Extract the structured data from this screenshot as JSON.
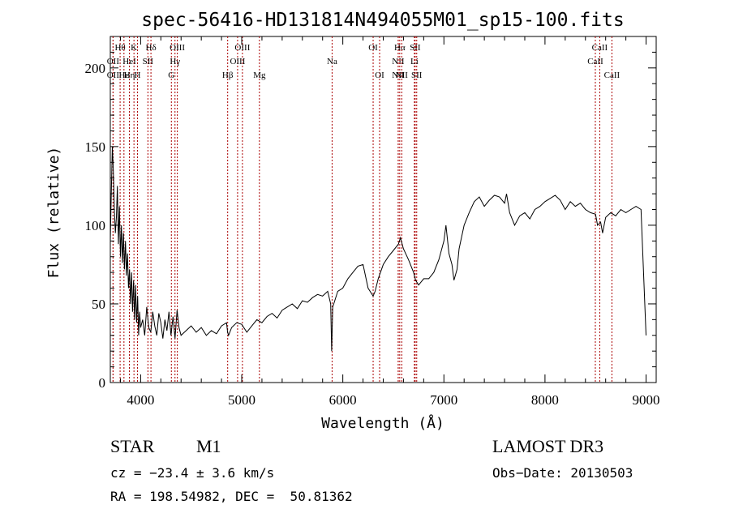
{
  "chart_data": {
    "type": "line",
    "title": "spec-56416-HD131814N494055M01_sp15-100.fits",
    "xlabel": "Wavelength (Å)",
    "ylabel": "Flux (relative)",
    "xlim": [
      3700,
      9100
    ],
    "ylim": [
      0,
      220
    ],
    "xticks": [
      4000,
      5000,
      6000,
      7000,
      8000,
      9000
    ],
    "yticks": [
      0,
      50,
      100,
      150,
      200
    ],
    "grid": false,
    "line_color": "#000000",
    "marker_color": "#aa0000",
    "series": [
      {
        "x": [
          3700,
          3710,
          3720,
          3730,
          3740,
          3750,
          3760,
          3770,
          3780,
          3790,
          3800,
          3810,
          3820,
          3830,
          3840,
          3850,
          3860,
          3870,
          3880,
          3890,
          3900,
          3910,
          3920,
          3930,
          3940,
          3950,
          3960,
          3970,
          3980,
          3990,
          4000,
          4020,
          4040,
          4060,
          4080,
          4100,
          4120,
          4140,
          4160,
          4180,
          4200,
          4220,
          4240,
          4260,
          4280,
          4300,
          4320,
          4340,
          4360,
          4380,
          4400,
          4450,
          4500,
          4550,
          4600,
          4650,
          4700,
          4750,
          4800,
          4850,
          4860,
          4870,
          4900,
          4950,
          5000,
          5050,
          5100,
          5150,
          5200,
          5250,
          5300,
          5350,
          5400,
          5450,
          5500,
          5550,
          5600,
          5650,
          5700,
          5750,
          5800,
          5850,
          5880,
          5890,
          5900,
          5920,
          5950,
          6000,
          6050,
          6100,
          6150,
          6200,
          6250,
          6300,
          6320,
          6350,
          6400,
          6450,
          6500,
          6550,
          6570,
          6600,
          6650,
          6700,
          6720,
          6750,
          6800,
          6850,
          6900,
          6950,
          7000,
          7020,
          7050,
          7080,
          7100,
          7130,
          7150,
          7200,
          7250,
          7300,
          7350,
          7400,
          7450,
          7500,
          7550,
          7600,
          7620,
          7650,
          7700,
          7750,
          7800,
          7850,
          7900,
          7950,
          8000,
          8050,
          8100,
          8150,
          8200,
          8250,
          8300,
          8350,
          8400,
          8450,
          8500,
          8520,
          8550,
          8570,
          8600,
          8650,
          8700,
          8750,
          8800,
          8850,
          8900,
          8950,
          9000
        ],
        "y": [
          90,
          120,
          150,
          135,
          110,
          95,
          105,
          125,
          88,
          112,
          80,
          100,
          76,
          95,
          72,
          90,
          68,
          82,
          60,
          72,
          50,
          70,
          45,
          65,
          40,
          62,
          38,
          55,
          30,
          45,
          35,
          40,
          30,
          48,
          35,
          32,
          45,
          36,
          30,
          44,
          38,
          28,
          40,
          33,
          45,
          30,
          42,
          28,
          46,
          35,
          30,
          33,
          36,
          32,
          35,
          30,
          33,
          31,
          36,
          38,
          32,
          30,
          35,
          38,
          37,
          32,
          36,
          40,
          38,
          42,
          44,
          41,
          46,
          48,
          50,
          47,
          52,
          51,
          54,
          56,
          55,
          58,
          50,
          20,
          48,
          52,
          58,
          60,
          66,
          70,
          74,
          75,
          60,
          55,
          58,
          66,
          75,
          80,
          84,
          88,
          92,
          85,
          78,
          70,
          65,
          62,
          66,
          66,
          70,
          78,
          90,
          100,
          82,
          75,
          65,
          72,
          85,
          100,
          108,
          115,
          118,
          112,
          116,
          119,
          118,
          114,
          120,
          108,
          100,
          106,
          108,
          104,
          110,
          112,
          115,
          117,
          119,
          116,
          110,
          115,
          112,
          114,
          110,
          108,
          107,
          100,
          102,
          95,
          105,
          108,
          106,
          110,
          108,
          110,
          112,
          110,
          30
        ]
      }
    ],
    "line_markers": [
      {
        "label": "Hθ",
        "x": 3797,
        "row": 1
      },
      {
        "label": "OII",
        "x": 3727,
        "row": 2
      },
      {
        "label": "OII",
        "x": 3727,
        "row": 3
      },
      {
        "label": "Hε",
        "x": 3835,
        "row": 3
      },
      {
        "label": "HeI",
        "x": 3889,
        "row": 2
      },
      {
        "label": "K",
        "x": 3934,
        "row": 1
      },
      {
        "label": "H",
        "x": 3969,
        "row": 3
      },
      {
        "label": "SII",
        "x": 4072,
        "row": 2
      },
      {
        "label": "Hδ",
        "x": 4102,
        "row": 1
      },
      {
        "label": "Hη",
        "x": 3889,
        "row": 3
      },
      {
        "label": "G",
        "x": 4304,
        "row": 3
      },
      {
        "label": "Hγ",
        "x": 4340,
        "row": 2
      },
      {
        "label": "OIII",
        "x": 4363,
        "row": 1
      },
      {
        "label": "Hβ",
        "x": 4861,
        "row": 3
      },
      {
        "label": "OIII",
        "x": 4959,
        "row": 2
      },
      {
        "label": "OIII",
        "x": 5007,
        "row": 1
      },
      {
        "label": "Mg",
        "x": 5175,
        "row": 3
      },
      {
        "label": "Na",
        "x": 5894,
        "row": 2
      },
      {
        "label": "OI",
        "x": 6300,
        "row": 1
      },
      {
        "label": "OI",
        "x": 6364,
        "row": 3
      },
      {
        "label": "NII",
        "x": 6548,
        "row": 3
      },
      {
        "label": "NII",
        "x": 6548,
        "row": 2
      },
      {
        "label": "Hα",
        "x": 6563,
        "row": 1
      },
      {
        "label": "NII",
        "x": 6583,
        "row": 3
      },
      {
        "label": "SII",
        "x": 6716,
        "row": 1
      },
      {
        "label": "SII",
        "x": 6731,
        "row": 3
      },
      {
        "label": "Li",
        "x": 6708,
        "row": 2
      },
      {
        "label": "CaII",
        "x": 8498,
        "row": 2
      },
      {
        "label": "CaII",
        "x": 8542,
        "row": 1
      },
      {
        "label": "CaII",
        "x": 8662,
        "row": 3
      }
    ]
  },
  "info": {
    "class": "STAR",
    "subclass": "M1",
    "survey": "LAMOST DR3",
    "cz": "cz = −23.4 ± 3.6 km/s",
    "obs_date": "Obs−Date: 20130503",
    "coords": "RA = 198.54982, DEC =  50.81362"
  }
}
